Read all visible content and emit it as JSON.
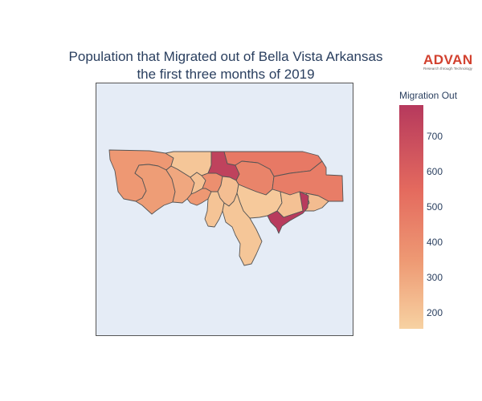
{
  "title": {
    "line1": "Population that Migrated out of Bella Vista Arkansas",
    "line2": "the first three months of 2019"
  },
  "logo": {
    "word": "ADVAN",
    "tagline": "Research through Technology"
  },
  "colorbar": {
    "title": "Migration Out",
    "ticks": [
      "700",
      "600",
      "500",
      "400",
      "300",
      "200"
    ],
    "range": [
      155,
      800
    ],
    "colors": [
      "#f7d2a2",
      "#ee9a74",
      "#e46a5e",
      "#b6395d"
    ]
  },
  "regions": [
    {
      "name": "west-1",
      "value": 380
    },
    {
      "name": "west-2",
      "value": 360
    },
    {
      "name": "west-3",
      "value": 320
    },
    {
      "name": "north-center-1",
      "value": 200
    },
    {
      "name": "north-center-2",
      "value": 220
    },
    {
      "name": "center-dark",
      "value": 760
    },
    {
      "name": "north-east-1",
      "value": 520
    },
    {
      "name": "north-east-2",
      "value": 470
    },
    {
      "name": "east-1",
      "value": 500
    },
    {
      "name": "center-mid-1",
      "value": 420
    },
    {
      "name": "center-mid-2",
      "value": 380
    },
    {
      "name": "center-light-1",
      "value": 230
    },
    {
      "name": "center-light-2",
      "value": 210
    },
    {
      "name": "center-light-3",
      "value": 190
    },
    {
      "name": "south-light",
      "value": 200
    },
    {
      "name": "east-light",
      "value": 220
    },
    {
      "name": "east-light-2",
      "value": 240
    },
    {
      "name": "south-east-dark",
      "value": 790
    }
  ]
}
